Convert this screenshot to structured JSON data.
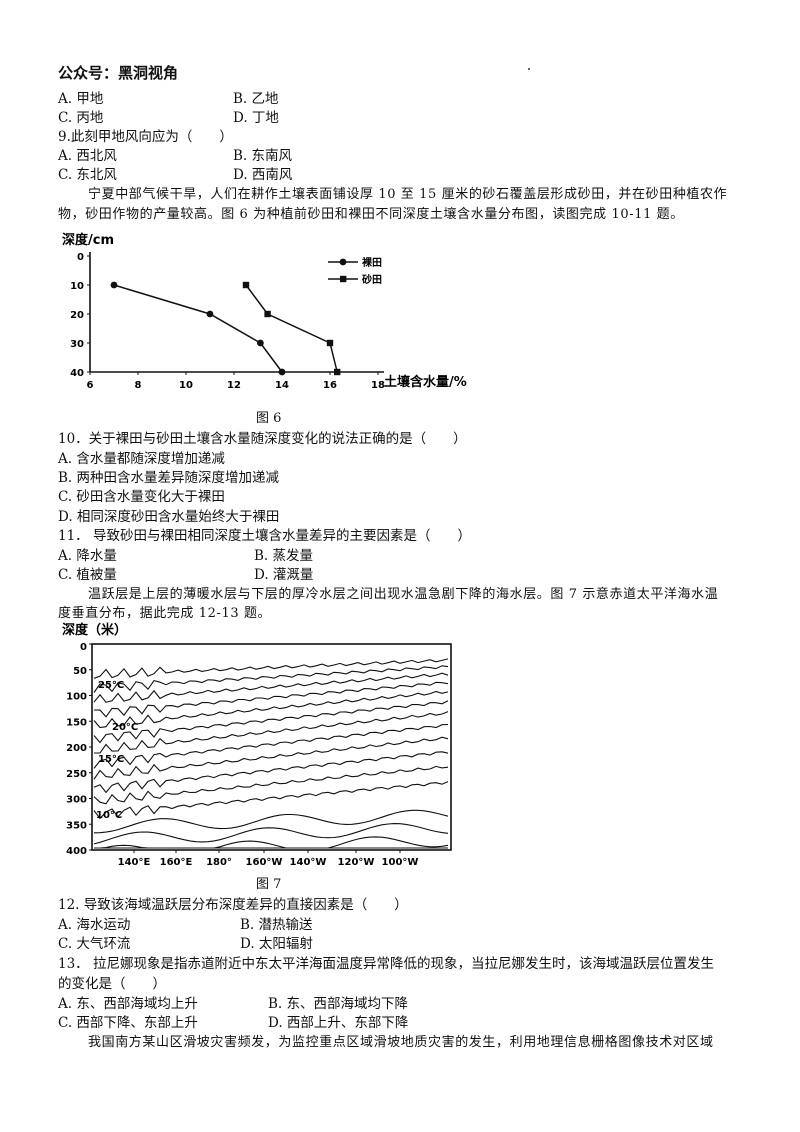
{
  "header": "公众号：黑洞视角",
  "q8_options": [
    "A. 甲地",
    "B. 乙地",
    "C. 丙地",
    "D. 丁地"
  ],
  "q9": {
    "stem": "9.此刻甲地风向应为（　　）",
    "options": [
      "A. 西北风",
      "B. 东南风",
      "C. 东北风",
      "D. 西南风"
    ]
  },
  "intro1": [
    "宁夏中部气候干旱，人们在耕作土壤表面铺设厚 10 至 15 厘米的砂石覆盖层形成砂田，并在砂田种植农作",
    "物，砂田作物的产量较高。图 6 为种植前砂田和裸田不同深度土壤含水量分布图，读图完成 10-11 题。"
  ],
  "fig6": {
    "caption": "图 6",
    "chart_data": {
      "type": "line",
      "xlabel": "土壤含水量/%",
      "ylabel": "深度/cm",
      "xlim": [
        6,
        18
      ],
      "ylim": [
        0,
        40
      ],
      "xticks": [
        "6",
        "8",
        "10",
        "12",
        "14",
        "16",
        "18"
      ],
      "yticks": [
        "0",
        "10",
        "20",
        "30",
        "40"
      ],
      "legend_position": "top-right",
      "series": [
        {
          "name": "裸田",
          "marker": "circle",
          "points": [
            [
              7,
              10
            ],
            [
              11,
              20
            ],
            [
              13.1,
              30
            ],
            [
              14,
              40
            ]
          ]
        },
        {
          "name": "砂田",
          "marker": "square",
          "points": [
            [
              12.5,
              10
            ],
            [
              13.4,
              20
            ],
            [
              16,
              30
            ],
            [
              16.3,
              40
            ]
          ]
        }
      ]
    }
  },
  "q10": {
    "stem": "10．关于裸田与砂田土壤含水量随深度变化的说法正确的是（　　）",
    "options": [
      "A. 含水量都随深度增加递减",
      "B. 两种田含水量差异随深度增加递减",
      "C. 砂田含水量变化大于裸田",
      "D. 相同深度砂田含水量始终大于裸田"
    ]
  },
  "q11": {
    "stem": "11． 导致砂田与裸田相同深度土壤含水量差异的主要因素是（　　）",
    "options": [
      "A. 降水量",
      "B. 蒸发量",
      "C. 植被量",
      "D. 灌溉量"
    ]
  },
  "intro2": [
    "温跃层是上层的薄暖水层与下层的厚冷水层之间出现水温急剧下降的海水层。图 7 示意赤道太平洋海水温",
    "度垂直分布，据此完成 12-13 题。"
  ],
  "fig7": {
    "caption": "图 7",
    "ylabel": "深度（米）",
    "yticks": [
      "0",
      "50",
      "100",
      "150",
      "200",
      "250",
      "300",
      "350",
      "400"
    ],
    "xticks": [
      "140°E",
      "160°E",
      "180°",
      "160°W",
      "140°W",
      "120°W",
      "100°W"
    ],
    "isotherm_labels": [
      "25°C",
      "20°C",
      "15°C",
      "10°C"
    ]
  },
  "q12": {
    "stem": "12. 导致该海域温跃层分布深度差异的直接因素是（　　）",
    "options": [
      "A. 海水运动",
      "B. 潜热输送",
      "C. 大气环流",
      "D. 太阳辐射"
    ]
  },
  "q13": {
    "stem_lines": [
      "13． 拉尼娜现象是指赤道附近中东太平洋海面温度异常降低的现象，当拉尼娜发生时，该海域温跃层位置发生",
      "的变化是（　　）"
    ],
    "options": [
      "A. 东、西部海域均上升",
      "B. 东、西部海域均下降",
      "C. 西部下降、东部上升",
      "D. 西部上升、东部下降"
    ]
  },
  "intro3": "我国南方某山区滑坡灾害频发，为监控重点区域滑坡地质灾害的发生，利用地理信息栅格图像技术对区域"
}
